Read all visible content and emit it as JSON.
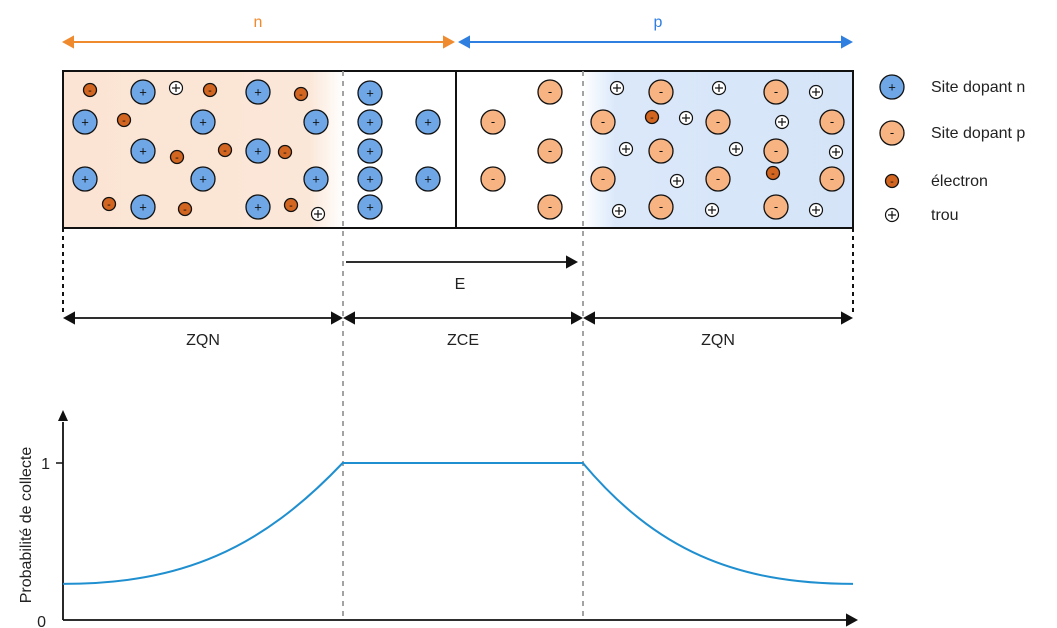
{
  "regions": {
    "n_label": "n",
    "p_label": "p",
    "field_label": "E",
    "zqn_left": "ZQN",
    "zce": "ZCE",
    "zqn_right": "ZQN"
  },
  "symbols": {
    "plus": "+",
    "minus": "-",
    "hole": "⊕"
  },
  "legend": {
    "items": [
      {
        "label": "Site dopant n",
        "icon": "donor-site-icon"
      },
      {
        "label": "Site dopant p",
        "icon": "acceptor-site-icon"
      },
      {
        "label": "électron",
        "icon": "electron-icon"
      },
      {
        "label": "trou",
        "icon": "hole-icon"
      }
    ]
  },
  "chart_data": {
    "type": "line",
    "ylabel": "Probabilité de collecte",
    "y_ticks": [
      "0",
      "1"
    ],
    "ylim": [
      0,
      1.25
    ],
    "x_regions": [
      "ZQN",
      "ZCE",
      "ZQN"
    ],
    "series": [
      {
        "values": [
          [
            0,
            0.23
          ],
          [
            0.1,
            0.27
          ],
          [
            0.2,
            0.38
          ],
          [
            0.28,
            0.55
          ],
          [
            0.354,
            1.0
          ],
          [
            0.658,
            1.0
          ],
          [
            0.73,
            0.57
          ],
          [
            0.8,
            0.4
          ],
          [
            0.9,
            0.27
          ],
          [
            1.0,
            0.23
          ]
        ]
      }
    ]
  },
  "colors": {
    "n_accent": "#f08a2e",
    "p_accent": "#2f7fe0",
    "donor_fill": "#6fa7e6",
    "acceptor_fill": "#f7b482",
    "electron_fill": "#d2651f",
    "curve": "#1f8fd0"
  }
}
